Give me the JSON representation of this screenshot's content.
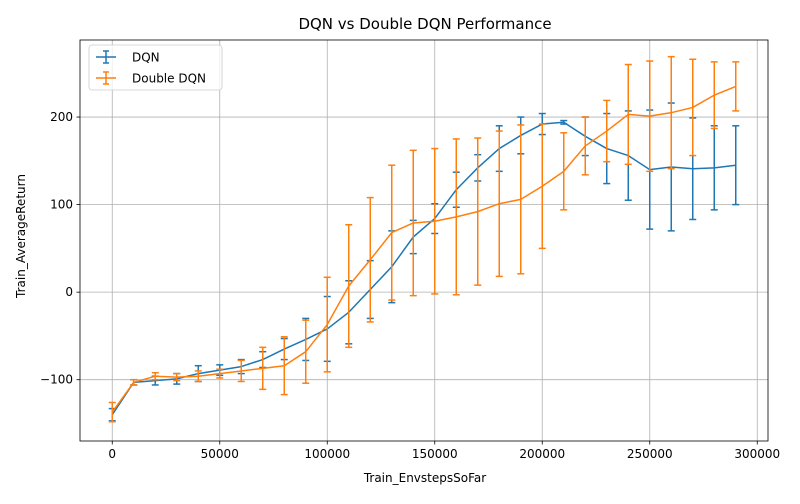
{
  "chart_data": {
    "type": "line",
    "title": "DQN vs Double DQN Performance",
    "xlabel": "Train_EnvstepsSoFar",
    "ylabel": "Train_AverageReturn",
    "xlim": [
      -15000,
      305000
    ],
    "ylim": [
      -170,
      288
    ],
    "xticks": [
      0,
      50000,
      100000,
      150000,
      200000,
      250000,
      300000
    ],
    "yticks": [
      -100,
      0,
      100,
      200
    ],
    "grid": true,
    "legend_position": "top-left",
    "x": [
      0,
      10000,
      20000,
      30000,
      40000,
      50000,
      60000,
      70000,
      80000,
      90000,
      100000,
      110000,
      120000,
      130000,
      140000,
      150000,
      160000,
      170000,
      180000,
      190000,
      200000,
      210000,
      220000,
      230000,
      240000,
      250000,
      260000,
      270000,
      280000,
      290000
    ],
    "series": [
      {
        "name": "DQN",
        "color": "#1f77b4",
        "values": [
          -140,
          -103,
          -101,
          -99,
          -93,
          -89,
          -85,
          -77,
          -65,
          -54,
          -42,
          -23,
          3,
          29,
          63,
          84,
          117,
          142,
          164,
          179,
          192,
          194,
          178,
          164,
          156,
          140,
          143,
          141,
          142,
          145
        ],
        "errors": [
          7,
          3,
          5,
          6,
          9,
          6,
          8,
          9,
          12,
          24,
          37,
          36,
          33,
          41,
          19,
          17,
          20,
          15,
          26,
          21,
          12,
          2,
          22,
          40,
          51,
          68,
          73,
          58,
          48,
          45
        ]
      },
      {
        "name": "Double DQN",
        "color": "#ff7f0e",
        "values": [
          -137,
          -103,
          -96,
          -97,
          -96,
          -93,
          -90,
          -87,
          -84,
          -68,
          -37,
          7,
          37,
          68,
          79,
          81,
          86,
          92,
          101,
          106,
          121,
          138,
          167,
          184,
          203,
          201,
          205,
          211,
          225,
          235
        ],
        "errors": [
          11,
          3,
          4,
          4,
          6,
          5,
          12,
          24,
          33,
          36,
          54,
          70,
          71,
          77,
          83,
          83,
          89,
          84,
          83,
          85,
          71,
          44,
          33,
          35,
          57,
          63,
          64,
          55,
          38,
          28
        ]
      }
    ]
  }
}
